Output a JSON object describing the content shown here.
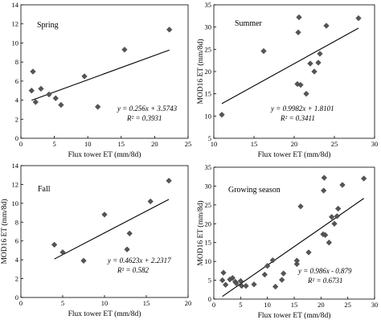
{
  "chart_data": [
    {
      "type": "scatter",
      "title": "Spring",
      "xlabel": "Flux tower ET (mm/8d)",
      "ylabel": "",
      "xlim": [
        0,
        25
      ],
      "ylim": [
        0,
        14
      ],
      "xticks": [
        0,
        5,
        10,
        15,
        20,
        25
      ],
      "yticks": [
        0,
        2,
        4,
        6,
        8,
        10,
        12,
        14
      ],
      "x": [
        1.6,
        1.8,
        2.2,
        3.0,
        4.2,
        5.2,
        6.0,
        9.5,
        11.5,
        15.5,
        22.2
      ],
      "y": [
        5.0,
        7.0,
        3.8,
        5.2,
        4.6,
        4.2,
        3.5,
        6.5,
        3.3,
        9.3,
        11.4
      ],
      "fit": {
        "slope": 0.256,
        "intercept": 3.5743,
        "x_range": [
          1.6,
          22.2
        ]
      },
      "equation": "y = 0.256x + 3.5743",
      "r2": "R² = 0.3931",
      "grid": false
    },
    {
      "type": "scatter",
      "title": "Summer",
      "xlabel": "Flux tower ET (mm/8d)",
      "ylabel": "MOD16 ET (mm/8d)",
      "xlim": [
        10,
        30
      ],
      "ylim": [
        5,
        35
      ],
      "xticks": [
        10,
        15,
        20,
        25,
        30
      ],
      "yticks": [
        5,
        10,
        15,
        20,
        25,
        30,
        35
      ],
      "x": [
        11.0,
        16.2,
        20.4,
        20.5,
        20.6,
        20.8,
        21.5,
        22.0,
        22.5,
        23.0,
        23.2,
        24.0,
        28.0
      ],
      "y": [
        10.3,
        24.6,
        17.2,
        28.8,
        32.2,
        17.0,
        15.0,
        21.8,
        20.0,
        22.0,
        24.0,
        30.3,
        32.0
      ],
      "fit": {
        "slope": 0.9982,
        "intercept": 1.8101,
        "x_range": [
          11.0,
          28.0
        ]
      },
      "equation": "y = 0.9982x + 1.8101",
      "r2": "R² = 0.3411",
      "grid": false
    },
    {
      "type": "scatter",
      "title": "Fall",
      "xlabel": "Flux tower ET (mm/8d)",
      "ylabel": "MOD16 ET (mm/8d)",
      "xlim": [
        0,
        20
      ],
      "ylim": [
        0,
        14
      ],
      "xticks": [
        0,
        5,
        10,
        15,
        20
      ],
      "yticks": [
        0,
        2,
        4,
        6,
        8,
        10,
        12,
        14
      ],
      "x": [
        4.0,
        5.0,
        7.5,
        10.0,
        12.7,
        13.0,
        15.5,
        17.7
      ],
      "y": [
        5.6,
        4.8,
        3.9,
        8.8,
        5.1,
        6.8,
        10.2,
        12.4
      ],
      "fit": {
        "slope": 0.4623,
        "intercept": 2.2317,
        "x_range": [
          4.0,
          17.7
        ]
      },
      "equation": "y = 0.4623x + 2.2317",
      "r2": "R² = 0.582",
      "grid": false
    },
    {
      "type": "scatter",
      "title": "Growing season",
      "xlabel": "Flux tower ET (mm/8d)",
      "ylabel": "MOD16 ET (mm/8d)",
      "xlim": [
        0,
        30
      ],
      "ylim": [
        0,
        35
      ],
      "xticks": [
        0,
        5,
        10,
        15,
        20,
        25,
        30
      ],
      "yticks": [
        0,
        5,
        10,
        15,
        20,
        25,
        30,
        35
      ],
      "x": [
        1.6,
        1.8,
        2.2,
        3.0,
        3.5,
        4.0,
        4.2,
        5.0,
        5.2,
        6.0,
        7.5,
        9.5,
        10.0,
        11.0,
        11.5,
        12.7,
        13.0,
        15.5,
        15.5,
        16.2,
        17.7,
        20.4,
        20.5,
        20.6,
        20.8,
        21.5,
        22.0,
        22.5,
        23.0,
        23.2,
        24.0,
        28.0
      ],
      "y": [
        5.0,
        7.0,
        3.8,
        5.2,
        5.6,
        4.6,
        4.2,
        4.8,
        3.5,
        3.5,
        3.9,
        6.5,
        8.8,
        10.3,
        3.3,
        5.1,
        6.8,
        9.3,
        10.2,
        24.6,
        12.4,
        17.2,
        28.8,
        32.2,
        17.0,
        15.0,
        21.8,
        20.0,
        22.0,
        24.0,
        30.3,
        32.0
      ],
      "fit": {
        "slope": 0.986,
        "intercept": -0.879,
        "x_range": [
          1.6,
          28.0
        ]
      },
      "equation": "y = 0.986x - 0.879",
      "r2": "R² = 0.6731",
      "grid": false
    }
  ]
}
